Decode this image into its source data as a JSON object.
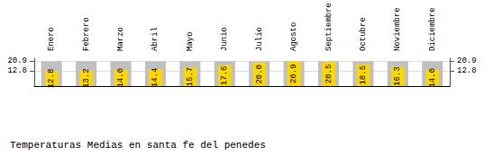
{
  "chart_data": {
    "type": "bar",
    "title": "Temperaturas Medias en santa fe del penedes",
    "categories": [
      "Enero",
      "Febrero",
      "Marzo",
      "Abril",
      "Mayo",
      "Junio",
      "Julio",
      "Agosto",
      "Septiembre",
      "Octubre",
      "Noviembre",
      "Diciembre"
    ],
    "series": [
      {
        "color": "#C0C0C0",
        "values": [
          20.9,
          20.9,
          20.9,
          20.9,
          20.9,
          20.9,
          20.9,
          20.9,
          20.9,
          20.9,
          20.9,
          20.9
        ]
      },
      {
        "color": "#FFD700",
        "data_labels": true,
        "values": [
          12.8,
          13.2,
          14.0,
          14.4,
          15.7,
          17.6,
          20.0,
          20.9,
          20.5,
          18.5,
          16.3,
          14.0
        ],
        "value_labels": [
          "12.8",
          "13.2",
          "14.0",
          "14.4",
          "15.7",
          "17.6",
          "20.0",
          "20.9",
          "20.5",
          "18.5",
          "16.3",
          "14.0"
        ]
      }
    ],
    "ylim": [
      0,
      23.408
    ],
    "yticks": [
      12.8,
      20.9
    ],
    "y2lim": [
      0,
      23.408
    ],
    "y2ticks": [
      12.8,
      20.9
    ],
    "grid": true
  }
}
